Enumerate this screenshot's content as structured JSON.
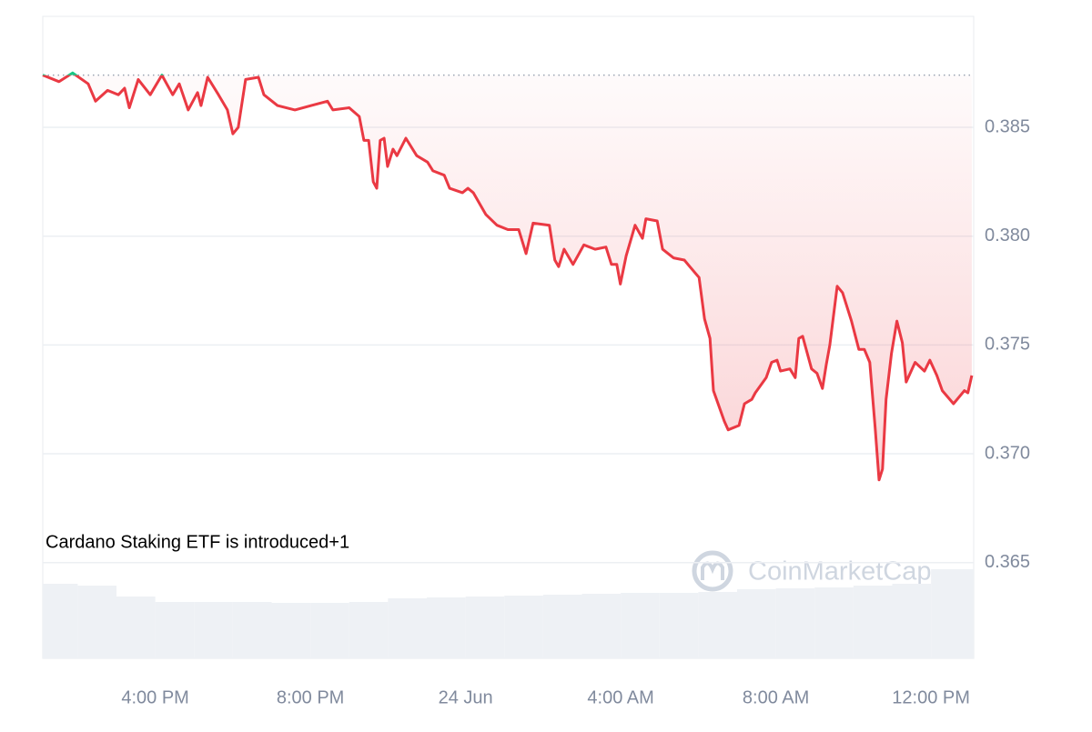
{
  "chart_data": {
    "type": "line",
    "x": [
      13.1,
      13.52,
      13.87,
      14.27,
      14.46,
      14.77,
      15.05,
      15.21,
      15.33,
      15.56,
      15.87,
      16.17,
      16.45,
      16.62,
      16.85,
      17.09,
      17.18,
      17.35,
      17.63,
      17.86,
      18.0,
      18.14,
      18.33,
      18.66,
      18.8,
      19.15,
      19.6,
      20.02,
      20.44,
      20.58,
      21.0,
      21.26,
      21.38,
      21.5,
      21.62,
      21.71,
      21.8,
      21.9,
      21.99,
      22.13,
      22.23,
      22.46,
      22.74,
      23.02,
      23.16,
      23.45,
      23.59,
      23.92,
      24.06,
      24.2,
      24.52,
      24.81,
      25.09,
      25.37,
      25.56,
      25.74,
      26.16,
      26.3,
      26.4,
      26.54,
      26.77,
      27.05,
      27.34,
      27.62,
      27.76,
      27.9,
      27.99,
      28.14,
      28.37,
      28.56,
      28.65,
      28.94,
      29.08,
      29.36,
      29.64,
      29.78,
      30.02,
      30.16,
      30.3,
      30.39,
      30.67,
      30.77,
      31.05,
      31.19,
      31.38,
      31.47,
      31.75,
      31.89,
      32.03,
      32.12,
      32.36,
      32.5,
      32.59,
      32.69,
      32.92,
      33.06,
      33.2,
      33.3,
      33.39,
      33.58,
      33.72,
      33.95,
      34.14,
      34.28,
      34.42,
      34.56,
      34.66,
      34.75,
      34.84,
      34.98,
      35.12,
      35.26,
      35.36,
      35.59,
      35.83,
      35.97,
      36.15,
      36.29,
      36.58,
      36.86,
      36.95,
      37.05
    ],
    "series": [
      {
        "color": "#ea3943",
        "above_color": "#16c784",
        "values": [
          0.3874,
          0.3871,
          0.3875,
          0.387,
          0.3862,
          0.3867,
          0.3865,
          0.3868,
          0.3859,
          0.3872,
          0.3865,
          0.3874,
          0.3865,
          0.387,
          0.3858,
          0.3866,
          0.386,
          0.3873,
          0.3865,
          0.3858,
          0.3847,
          0.385,
          0.3872,
          0.3873,
          0.3865,
          0.386,
          0.3858,
          0.386,
          0.3862,
          0.3858,
          0.3859,
          0.3855,
          0.3844,
          0.3844,
          0.3825,
          0.3822,
          0.3844,
          0.3845,
          0.3832,
          0.384,
          0.3837,
          0.3845,
          0.3837,
          0.3834,
          0.383,
          0.3828,
          0.3822,
          0.382,
          0.3822,
          0.382,
          0.381,
          0.3805,
          0.3803,
          0.3803,
          0.3792,
          0.3806,
          0.3805,
          0.3789,
          0.3786,
          0.3794,
          0.3787,
          0.3796,
          0.3794,
          0.3795,
          0.3787,
          0.3787,
          0.3778,
          0.3791,
          0.3805,
          0.3799,
          0.3808,
          0.3807,
          0.3794,
          0.379,
          0.3789,
          0.3786,
          0.3781,
          0.3762,
          0.3753,
          0.3729,
          0.3715,
          0.3711,
          0.3713,
          0.3723,
          0.3725,
          0.3728,
          0.3735,
          0.3742,
          0.3743,
          0.3738,
          0.3739,
          0.3735,
          0.3753,
          0.3754,
          0.3739,
          0.3737,
          0.373,
          0.3741,
          0.375,
          0.3777,
          0.3774,
          0.3761,
          0.3748,
          0.3748,
          0.3742,
          0.3712,
          0.3688,
          0.3693,
          0.3725,
          0.3746,
          0.3761,
          0.3751,
          0.3733,
          0.3742,
          0.3738,
          0.3743,
          0.3736,
          0.3729,
          0.3723,
          0.3729,
          0.3728,
          0.3736
        ]
      }
    ],
    "reference": 0.3874,
    "volume": {
      "color": "#eef1f5",
      "x": [
        13,
        14,
        15,
        16,
        17,
        18,
        19,
        20,
        21,
        22,
        23,
        24,
        25,
        26,
        27,
        28,
        29,
        30,
        31,
        32,
        33,
        34,
        35,
        36
      ],
      "values": [
        82,
        80,
        68,
        62,
        62,
        62,
        61,
        61,
        62,
        66,
        67,
        68,
        69,
        70,
        71,
        72,
        72,
        73,
        76,
        77,
        78,
        80,
        82,
        98
      ],
      "vlim": [
        0,
        100
      ]
    },
    "xlim": [
      13.1,
      37.1
    ],
    "xticks": [
      {
        "value": 16,
        "label": "4:00 PM"
      },
      {
        "value": 20,
        "label": "8:00 PM"
      },
      {
        "value": 24,
        "label": "24 Jun"
      },
      {
        "value": 28,
        "label": "4:00 AM"
      },
      {
        "value": 32,
        "label": "8:00 AM"
      },
      {
        "value": 36,
        "label": "12:00 PM"
      }
    ],
    "ylim": [
      0.3606,
      0.3901
    ],
    "yticks": [
      0.365,
      {
        "value": 0.37,
        "label": "0.370"
      },
      0.375,
      {
        "value": 0.38,
        "label": "0.380"
      },
      0.385
    ],
    "grid": true,
    "annotations": [
      "Cardano Staking ETF is introduced+1"
    ],
    "watermark": "CoinMarketCap"
  }
}
